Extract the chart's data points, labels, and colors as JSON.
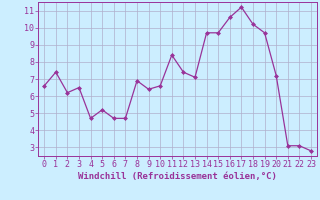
{
  "x": [
    0,
    1,
    2,
    3,
    4,
    5,
    6,
    7,
    8,
    9,
    10,
    11,
    12,
    13,
    14,
    15,
    16,
    17,
    18,
    19,
    20,
    21,
    22,
    23
  ],
  "y": [
    6.6,
    7.4,
    6.2,
    6.5,
    4.7,
    5.2,
    4.7,
    4.7,
    6.9,
    6.4,
    6.6,
    8.4,
    7.4,
    7.1,
    9.7,
    9.7,
    10.6,
    11.2,
    10.2,
    9.7,
    7.2,
    3.1,
    3.1,
    2.8
  ],
  "line_color": "#993399",
  "marker": "D",
  "marker_size": 2.0,
  "linewidth": 0.9,
  "xlabel": "Windchill (Refroidissement éolien,°C)",
  "xlim": [
    -0.5,
    23.5
  ],
  "ylim": [
    2.5,
    11.5
  ],
  "yticks": [
    3,
    4,
    5,
    6,
    7,
    8,
    9,
    10,
    11
  ],
  "xticks": [
    0,
    1,
    2,
    3,
    4,
    5,
    6,
    7,
    8,
    9,
    10,
    11,
    12,
    13,
    14,
    15,
    16,
    17,
    18,
    19,
    20,
    21,
    22,
    23
  ],
  "background_color": "#cceeff",
  "grid_color": "#b0b0cc",
  "line_border_color": "#993399",
  "label_color": "#993399",
  "xlabel_fontsize": 6.5,
  "tick_fontsize": 6.0
}
